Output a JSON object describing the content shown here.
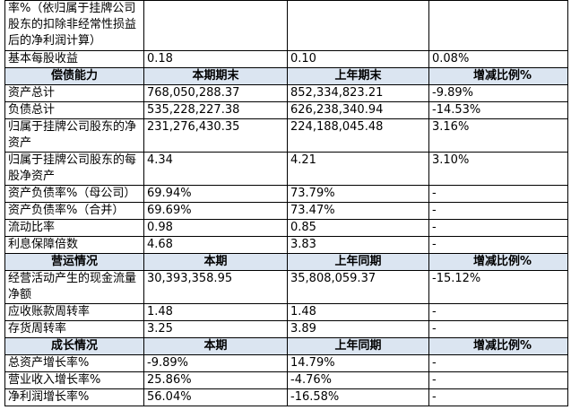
{
  "table": {
    "intro_rows": [
      [
        "率%（依归属于挂牌公司股东的扣除非经常性损益后的净利润计算）"
      ],
      [
        "基本每股收益",
        "0.18",
        "0.10",
        "0.08%"
      ]
    ],
    "sections": [
      {
        "header": [
          "偿债能力",
          "本期期末",
          "上年期末",
          "增减比例%"
        ],
        "rows": [
          [
            "资产总计",
            "768,050,288.37",
            "852,334,823.21",
            "-9.89%"
          ],
          [
            "负债总计",
            "535,228,227.38",
            "626,238,340.94",
            "-14.53%"
          ],
          [
            "归属于挂牌公司股东的净资产",
            "231,276,430.35",
            "224,188,045.48",
            "3.16%"
          ],
          [
            "归属于挂牌公司股东的每股净资产",
            "4.34",
            "4.21",
            "3.10%"
          ],
          [
            "资产负债率%（母公司）",
            "69.94%",
            "73.79%",
            "-"
          ],
          [
            "资产负债率%（合并）",
            "69.69%",
            "73.47%",
            "-"
          ],
          [
            "流动比率",
            "0.98",
            "0.85",
            "-"
          ],
          [
            "利息保障倍数",
            "4.68",
            "3.83",
            "-"
          ]
        ]
      },
      {
        "header": [
          "营运情况",
          "本期",
          "上年同期",
          "增减比例%"
        ],
        "rows": [
          [
            "经营活动产生的现金流量净额",
            "30,393,358.95",
            "35,808,059.37",
            "-15.12%"
          ],
          [
            "应收账款周转率",
            "1.48",
            "1.48",
            "-"
          ],
          [
            "存货周转率",
            "3.25",
            "3.89",
            "-"
          ]
        ]
      },
      {
        "header": [
          "成长情况",
          "本期",
          "上年同期",
          "增减比例%"
        ],
        "rows": [
          [
            "总资产增长率%",
            "-9.89%",
            "14.79%",
            "-"
          ],
          [
            "营业收入增长率%",
            "25.86%",
            "-4.76%",
            "-"
          ],
          [
            "净利润增长率%",
            "56.04%",
            "-16.58%",
            "-"
          ]
        ]
      }
    ]
  }
}
